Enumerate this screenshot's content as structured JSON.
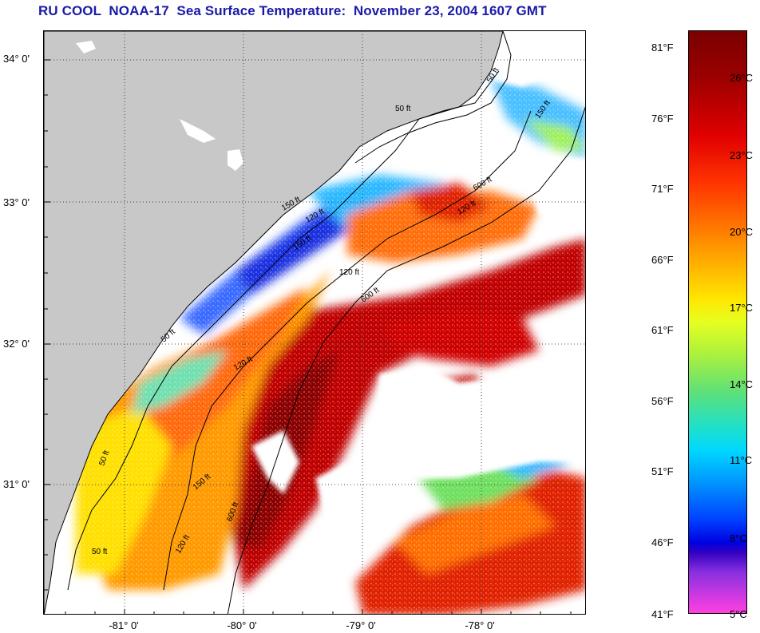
{
  "title": "RU COOL  NOAA-17  Sea Surface Temperature:  November 23, 2004 1607 GMT",
  "map": {
    "lat_ticks": [
      "34° 0'",
      "33° 0'",
      "32° 0'",
      "31° 0'"
    ],
    "lon_ticks": [
      "-81° 0'",
      "-80° 0'",
      "-79° 0'",
      "-78° 0'"
    ],
    "isobath_labels": [
      "50 ft",
      "50 ft",
      "120 ft",
      "150 ft",
      "120 ft",
      "150 ft",
      "600 ft",
      "600 ft",
      "150 ft",
      "50 ft",
      "120 ft",
      "600 ft",
      "150 ft",
      "120 ft",
      "50 ft",
      "50 ft",
      "120 ft"
    ],
    "colors": {
      "land": "#c8c8c8",
      "no_data": "#ffffff"
    }
  },
  "colorbar": {
    "fahrenheit": [
      "81°F",
      "76°F",
      "71°F",
      "66°F",
      "61°F",
      "56°F",
      "51°F",
      "46°F",
      "41°F"
    ],
    "celsius": [
      "26°C",
      "23°C",
      "20°C",
      "17°C",
      "14°C",
      "11°C",
      "8°C",
      "5°C"
    ],
    "range_f": [
      41,
      84
    ],
    "colors_warm_to_cold": [
      "#7a0000",
      "#e00000",
      "#ff7a00",
      "#ffe600",
      "#5ee07a",
      "#00d8ff",
      "#0040ff",
      "#8a30e0",
      "#ff40e0"
    ]
  }
}
